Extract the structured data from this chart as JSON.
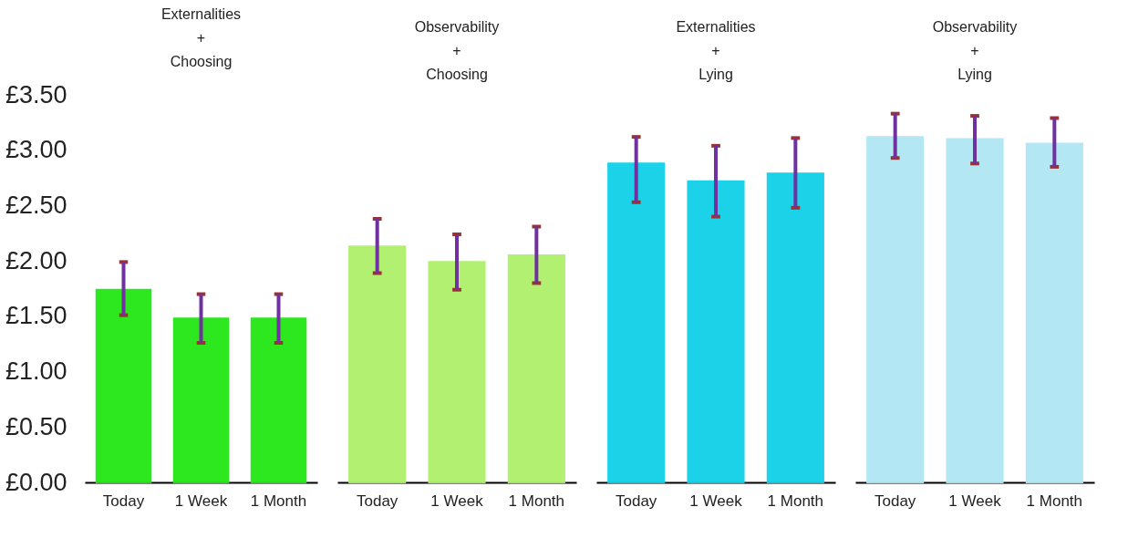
{
  "chart_data": [
    {
      "type": "bar",
      "title": "Externalities\n+\nChoosing",
      "categories": [
        "Today",
        "1 Week",
        "1 Month"
      ],
      "values": [
        1.74,
        1.48,
        1.48
      ],
      "errors": [
        [
          1.51,
          1.99
        ],
        [
          1.26,
          1.7
        ],
        [
          1.26,
          1.7
        ]
      ],
      "color": "#22e614",
      "ylim": [
        0,
        3.5
      ],
      "yticks": [
        {
          "value": 0,
          "label": "£0.00"
        },
        {
          "value": 0.5,
          "label": "£0.50"
        },
        {
          "value": 1,
          "label": "£1.00"
        },
        {
          "value": 1.5,
          "label": "£1.50"
        },
        {
          "value": 2,
          "label": "£2.00"
        },
        {
          "value": 2.5,
          "label": "£2.50"
        },
        {
          "value": 3,
          "label": "£3.00"
        },
        {
          "value": 3.5,
          "label": "£3.50"
        }
      ],
      "grid": false
    },
    {
      "type": "bar",
      "title": "Observability\n+\nChoosing",
      "categories": [
        "Today",
        "1 Week",
        "1 Month"
      ],
      "values": [
        2.13,
        1.99,
        2.05
      ],
      "errors": [
        [
          1.89,
          2.38
        ],
        [
          1.74,
          2.24
        ],
        [
          1.8,
          2.31
        ]
      ],
      "color": "#adf06a",
      "ylim": [
        0,
        3.5
      ],
      "tick_labels": "x",
      "grid": false
    },
    {
      "type": "bar",
      "title": "Externalities\n+\nLying",
      "categories": [
        "Today",
        "1 Week",
        "1 Month"
      ],
      "values": [
        2.88,
        2.72,
        2.79
      ],
      "errors": [
        [
          2.53,
          3.12
        ],
        [
          2.4,
          3.04
        ],
        [
          2.48,
          3.11
        ]
      ],
      "color": "#0fd0e8",
      "ylim": [
        0,
        3.5
      ],
      "tick_labels": "x",
      "grid": false
    },
    {
      "type": "bar",
      "title": "Observability\n+\nLying",
      "categories": [
        "Today",
        "1 Week",
        "1 Month"
      ],
      "values": [
        3.12,
        3.1,
        3.06
      ],
      "errors": [
        [
          2.93,
          3.33
        ],
        [
          2.88,
          3.31
        ],
        [
          2.85,
          3.29
        ]
      ],
      "color": "#aee6f3",
      "ylim": [
        0,
        3.5
      ],
      "tick_labels": "x",
      "grid": false
    }
  ]
}
